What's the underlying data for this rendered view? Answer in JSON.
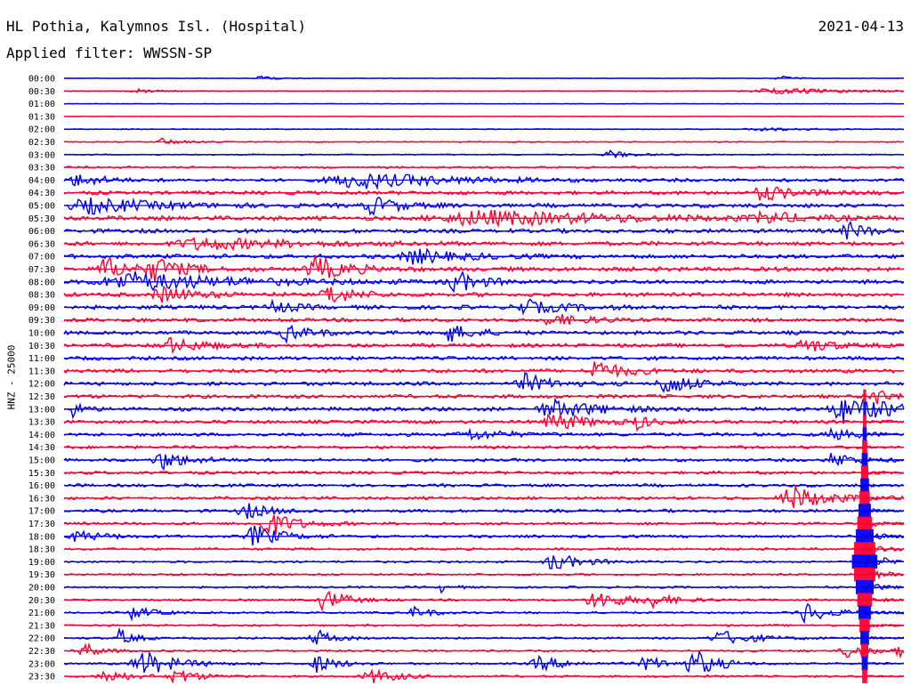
{
  "header": {
    "station": "HL Pothia, Kalymnos Isl. (Hospital)",
    "date": "2021-04-13",
    "filter": "Applied filter: WWSSN-SP"
  },
  "chart_data": {
    "type": "line",
    "ylabel": "HNZ - 25000",
    "colors": [
      "#0000ee",
      "#ff0033"
    ],
    "row_labels": [
      "00:00",
      "00:30",
      "01:00",
      "01:30",
      "02:00",
      "02:30",
      "03:00",
      "03:30",
      "04:00",
      "04:30",
      "05:00",
      "05:30",
      "06:00",
      "06:30",
      "07:00",
      "07:30",
      "08:00",
      "08:30",
      "09:00",
      "09:30",
      "10:00",
      "10:30",
      "11:00",
      "11:30",
      "12:00",
      "12:30",
      "13:00",
      "13:30",
      "14:00",
      "14:30",
      "15:00",
      "15:30",
      "16:00",
      "16:30",
      "17:00",
      "17:30",
      "18:00",
      "18:30",
      "19:00",
      "19:30",
      "20:00",
      "20:30",
      "21:00",
      "21:30",
      "22:00",
      "22:30",
      "23:00",
      "23:30"
    ],
    "noise_level": [
      0.3,
      0.4,
      0.3,
      0.3,
      0.5,
      0.6,
      0.7,
      1.2,
      1.8,
      2.2,
      2.4,
      2.6,
      2.4,
      2.4,
      2.4,
      2.6,
      2.4,
      2.4,
      2.4,
      2.2,
      2.2,
      2.2,
      2.2,
      2.2,
      2.2,
      2.2,
      2.2,
      2.0,
      2.0,
      1.8,
      1.8,
      1.8,
      1.8,
      1.8,
      1.8,
      1.6,
      1.6,
      1.4,
      1.2,
      1.2,
      1.2,
      1.2,
      1.2,
      1.2,
      1.2,
      1.2,
      1.2,
      1.2
    ],
    "events": [
      {
        "row": 0,
        "minute": 7.0,
        "amp": 4,
        "dur": 0.6
      },
      {
        "row": 0,
        "minute": 25.5,
        "amp": 3,
        "dur": 0.6
      },
      {
        "row": 1,
        "minute": 2.5,
        "amp": 3,
        "dur": 1.0
      },
      {
        "row": 1,
        "minute": 25.5,
        "amp": 3,
        "dur": 4.0
      },
      {
        "row": 4,
        "minute": 25.0,
        "amp": 2,
        "dur": 2.0
      },
      {
        "row": 5,
        "minute": 3.5,
        "amp": 4,
        "dur": 0.8
      },
      {
        "row": 6,
        "minute": 19.5,
        "amp": 4,
        "dur": 1.0
      },
      {
        "row": 8,
        "minute": 10.5,
        "amp": 9,
        "dur": 4.0
      },
      {
        "row": 8,
        "minute": 0.5,
        "amp": 7,
        "dur": 1.2
      },
      {
        "row": 9,
        "minute": 25.0,
        "amp": 8,
        "dur": 1.5
      },
      {
        "row": 10,
        "minute": 1.0,
        "amp": 8,
        "dur": 3.0
      },
      {
        "row": 10,
        "minute": 11.0,
        "amp": 10,
        "dur": 1.2
      },
      {
        "row": 11,
        "minute": 15.0,
        "amp": 8,
        "dur": 6.0
      },
      {
        "row": 11,
        "minute": 25.0,
        "amp": 6,
        "dur": 1.5
      },
      {
        "row": 12,
        "minute": 28.0,
        "amp": 10,
        "dur": 0.8
      },
      {
        "row": 13,
        "minute": 5.0,
        "amp": 6,
        "dur": 4.0
      },
      {
        "row": 14,
        "minute": 12.5,
        "amp": 8,
        "dur": 2.0
      },
      {
        "row": 15,
        "minute": 1.5,
        "amp": 12,
        "dur": 1.2
      },
      {
        "row": 15,
        "minute": 3.3,
        "amp": 12,
        "dur": 1.2
      },
      {
        "row": 15,
        "minute": 9.0,
        "amp": 14,
        "dur": 1.3
      },
      {
        "row": 16,
        "minute": 2.5,
        "amp": 10,
        "dur": 4.5
      },
      {
        "row": 16,
        "minute": 14.0,
        "amp": 12,
        "dur": 1.0
      },
      {
        "row": 17,
        "minute": 3.5,
        "amp": 8,
        "dur": 1.5
      },
      {
        "row": 17,
        "minute": 9.5,
        "amp": 12,
        "dur": 1.0
      },
      {
        "row": 18,
        "minute": 7.5,
        "amp": 8,
        "dur": 0.8
      },
      {
        "row": 18,
        "minute": 16.5,
        "amp": 8,
        "dur": 1.5
      },
      {
        "row": 19,
        "minute": 17.5,
        "amp": 6,
        "dur": 1.5
      },
      {
        "row": 20,
        "minute": 8.0,
        "amp": 9,
        "dur": 1.0
      },
      {
        "row": 20,
        "minute": 13.8,
        "amp": 10,
        "dur": 1.0
      },
      {
        "row": 21,
        "minute": 3.8,
        "amp": 8,
        "dur": 1.5
      },
      {
        "row": 21,
        "minute": 26.5,
        "amp": 8,
        "dur": 1.2
      },
      {
        "row": 23,
        "minute": 19.0,
        "amp": 12,
        "dur": 1.2
      },
      {
        "row": 24,
        "minute": 16.5,
        "amp": 10,
        "dur": 1.2
      },
      {
        "row": 24,
        "minute": 21.5,
        "amp": 12,
        "dur": 1.2
      },
      {
        "row": 25,
        "minute": 29.0,
        "amp": 10,
        "dur": 0.6
      },
      {
        "row": 26,
        "minute": 0.3,
        "amp": 8,
        "dur": 0.6
      },
      {
        "row": 26,
        "minute": 17.5,
        "amp": 10,
        "dur": 2.0
      },
      {
        "row": 26,
        "minute": 28.0,
        "amp": 14,
        "dur": 2.5
      },
      {
        "row": 27,
        "minute": 17.5,
        "amp": 10,
        "dur": 1.5
      },
      {
        "row": 27,
        "minute": 20.5,
        "amp": 8,
        "dur": 0.6
      },
      {
        "row": 28,
        "minute": 14.5,
        "amp": 6,
        "dur": 1.5
      },
      {
        "row": 28,
        "minute": 27.5,
        "amp": 6,
        "dur": 1.0
      },
      {
        "row": 30,
        "minute": 3.5,
        "amp": 10,
        "dur": 1.2
      },
      {
        "row": 30,
        "minute": 27.5,
        "amp": 8,
        "dur": 1.0
      },
      {
        "row": 33,
        "minute": 26.0,
        "amp": 14,
        "dur": 1.5
      },
      {
        "row": 34,
        "minute": 6.5,
        "amp": 8,
        "dur": 1.2
      },
      {
        "row": 35,
        "minute": 7.3,
        "amp": 14,
        "dur": 1.2
      },
      {
        "row": 36,
        "minute": 0.5,
        "amp": 6,
        "dur": 1.2
      },
      {
        "row": 36,
        "minute": 6.8,
        "amp": 12,
        "dur": 1.2
      },
      {
        "row": 38,
        "minute": 17.5,
        "amp": 10,
        "dur": 1.2
      },
      {
        "row": 40,
        "minute": 13.5,
        "amp": 6,
        "dur": 0.4
      },
      {
        "row": 41,
        "minute": 9.3,
        "amp": 12,
        "dur": 1.0
      },
      {
        "row": 41,
        "minute": 19.0,
        "amp": 10,
        "dur": 1.5
      },
      {
        "row": 41,
        "minute": 21.0,
        "amp": 6,
        "dur": 1.0
      },
      {
        "row": 42,
        "minute": 2.5,
        "amp": 8,
        "dur": 0.8
      },
      {
        "row": 42,
        "minute": 12.5,
        "amp": 6,
        "dur": 0.8
      },
      {
        "row": 42,
        "minute": 26.5,
        "amp": 12,
        "dur": 1.0
      },
      {
        "row": 44,
        "minute": 2.0,
        "amp": 10,
        "dur": 0.6
      },
      {
        "row": 44,
        "minute": 9.0,
        "amp": 10,
        "dur": 0.8
      },
      {
        "row": 44,
        "minute": 23.5,
        "amp": 8,
        "dur": 1.5
      },
      {
        "row": 45,
        "minute": 0.7,
        "amp": 10,
        "dur": 0.6
      },
      {
        "row": 45,
        "minute": 28.0,
        "amp": 8,
        "dur": 1.0
      },
      {
        "row": 45,
        "minute": 30.0,
        "amp": 8,
        "dur": 1.2
      },
      {
        "row": 46,
        "minute": 2.8,
        "amp": 14,
        "dur": 1.5
      },
      {
        "row": 46,
        "minute": 9.0,
        "amp": 10,
        "dur": 1.0
      },
      {
        "row": 46,
        "minute": 17.0,
        "amp": 8,
        "dur": 1.2
      },
      {
        "row": 46,
        "minute": 20.8,
        "amp": 8,
        "dur": 1.0
      },
      {
        "row": 46,
        "minute": 22.5,
        "amp": 16,
        "dur": 1.0
      },
      {
        "row": 47,
        "minute": 1.5,
        "amp": 8,
        "dur": 1.0
      },
      {
        "row": 47,
        "minute": 4.0,
        "amp": 8,
        "dur": 1.0
      },
      {
        "row": 47,
        "minute": 11.0,
        "amp": 8,
        "dur": 1.2
      }
    ],
    "major_event": {
      "start_row": 25,
      "end_row": 47,
      "minute": 28.6,
      "peak_row": 38,
      "peak_amp": 26,
      "tail_minutes": 1.5
    }
  }
}
